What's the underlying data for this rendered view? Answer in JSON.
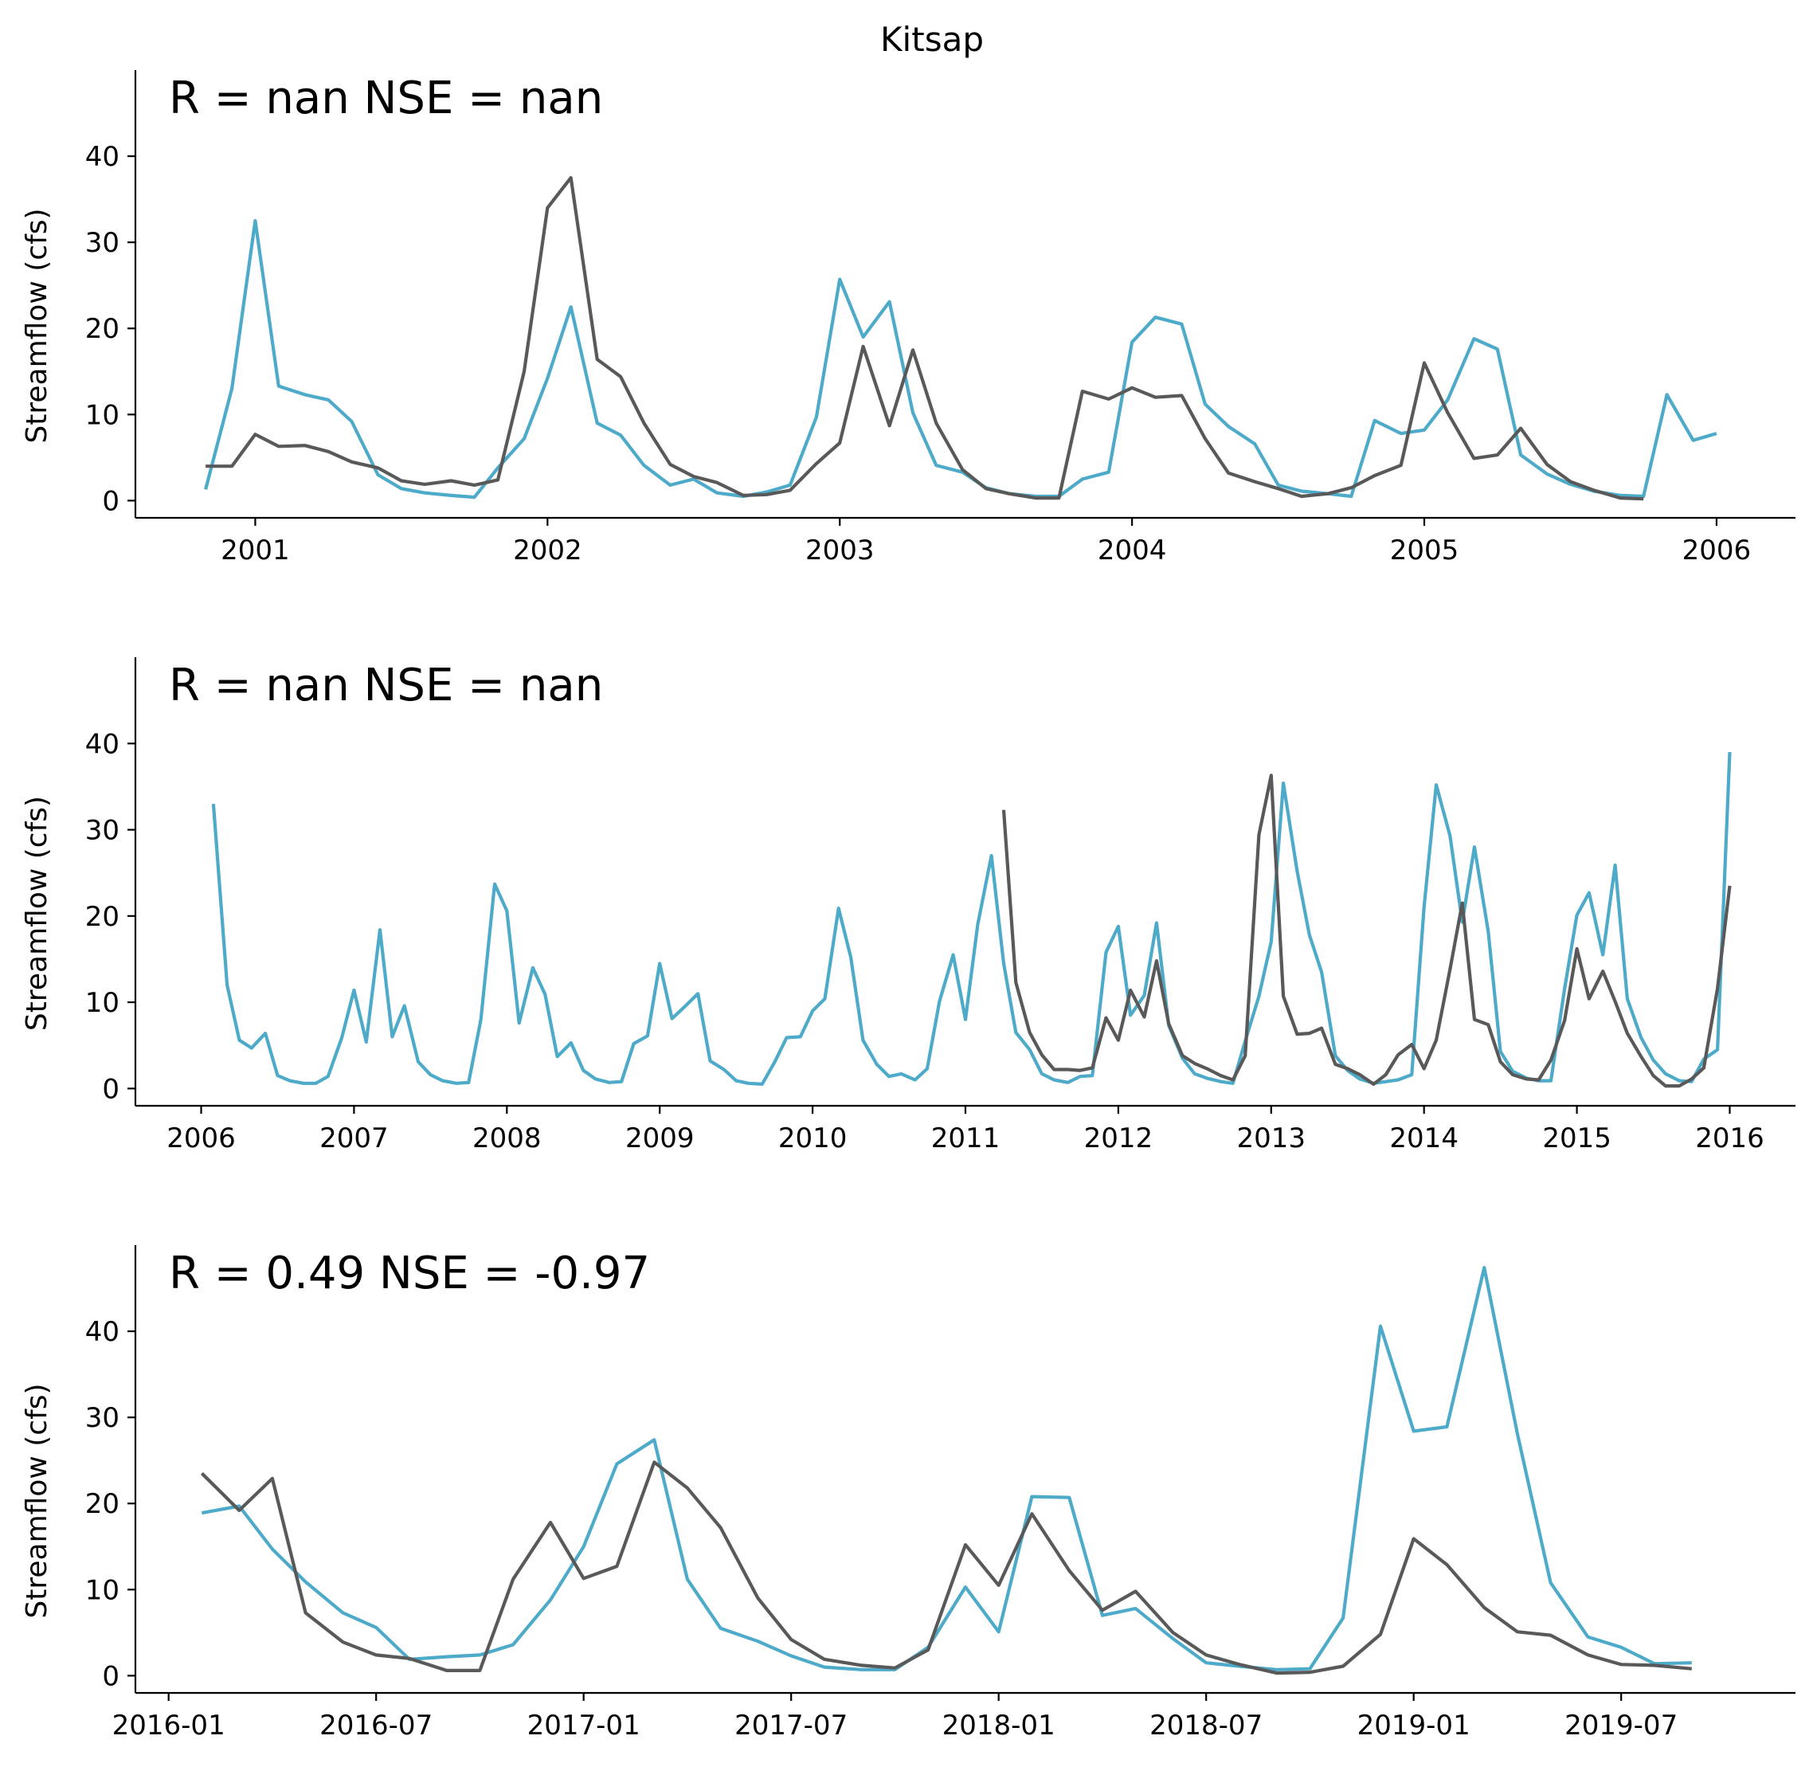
{
  "figure": {
    "title": "Kitsap"
  },
  "colors": {
    "observed": "#595959",
    "simulated": "#4daac9"
  },
  "chart_data": [
    {
      "type": "line",
      "stats_label": "R = nan  NSE = nan",
      "ylabel": "Streamflow (cfs)",
      "xlim": [
        2000.59,
        2006.27
      ],
      "ylim": [
        -2,
        50
      ],
      "xticks": [
        2001,
        2002,
        2003,
        2004,
        2005,
        2006
      ],
      "xtick_labels": [
        "2001",
        "2002",
        "2003",
        "2004",
        "2005",
        "2006"
      ],
      "yticks": [
        0,
        10,
        20,
        30,
        40
      ],
      "ytick_labels": [
        "0",
        "10",
        "20",
        "30",
        "40"
      ],
      "series": [
        {
          "color_key": "simulated",
          "x": [
            2000.83,
            2000.92,
            2001.0,
            2001.08,
            2001.17,
            2001.25,
            2001.33,
            2001.42,
            2001.5,
            2001.58,
            2001.67,
            2001.75,
            2001.83,
            2001.92,
            2002.0,
            2002.08,
            2002.17,
            2002.25,
            2002.33,
            2002.42,
            2002.5,
            2002.58,
            2002.67,
            2002.75,
            2002.83,
            2002.92,
            2003.0,
            2003.08,
            2003.17,
            2003.25,
            2003.33,
            2003.42,
            2003.5,
            2003.58,
            2003.67,
            2003.75,
            2003.83,
            2003.92,
            2004.0,
            2004.08,
            2004.17,
            2004.25,
            2004.33,
            2004.42,
            2004.5,
            2004.58,
            2004.67,
            2004.75,
            2004.83,
            2004.92,
            2005.0,
            2005.08,
            2005.17,
            2005.25,
            2005.33,
            2005.42,
            2005.5,
            2005.58,
            2005.67,
            2005.75,
            2005.83,
            2005.92,
            2006.0
          ],
          "y": [
            1.3,
            13.0,
            32.5,
            13.3,
            12.3,
            11.7,
            9.2,
            3.0,
            1.4,
            0.9,
            0.6,
            0.4,
            3.8,
            7.2,
            14.2,
            22.5,
            9.0,
            7.6,
            4.1,
            1.8,
            2.5,
            0.9,
            0.5,
            1.0,
            1.8,
            9.7,
            25.7,
            19.0,
            23.1,
            10.2,
            4.1,
            3.3,
            1.5,
            0.8,
            0.5,
            0.5,
            2.5,
            3.3,
            18.4,
            21.3,
            20.5,
            11.2,
            8.6,
            6.6,
            1.8,
            1.1,
            0.8,
            0.5,
            9.3,
            7.8,
            8.2,
            11.7,
            18.8,
            17.6,
            5.3,
            3.1,
            1.9,
            1.1,
            0.6,
            0.5,
            12.3,
            7.0,
            7.8
          ]
        },
        {
          "color_key": "observed",
          "x": [
            2000.83,
            2000.92,
            2001.0,
            2001.08,
            2001.17,
            2001.25,
            2001.33,
            2001.42,
            2001.5,
            2001.58,
            2001.67,
            2001.75,
            2001.83,
            2001.92,
            2002.0,
            2002.08,
            2002.17,
            2002.25,
            2002.33,
            2002.42,
            2002.5,
            2002.58,
            2002.67,
            2002.75,
            2002.83,
            2002.92,
            2003.0,
            2003.08,
            2003.17,
            2003.25,
            2003.33,
            2003.42,
            2003.5,
            2003.58,
            2003.67,
            2003.75,
            2003.83,
            2003.92,
            2004.0,
            2004.08,
            2004.17,
            2004.25,
            2004.33,
            2004.42,
            2004.5,
            2004.58,
            2004.67,
            2004.75,
            2004.83,
            2004.92,
            2005.0,
            2005.08,
            2005.17,
            2005.25,
            2005.33,
            2005.42,
            2005.5,
            2005.58,
            2005.67,
            2005.75
          ],
          "y": [
            4.0,
            4.0,
            7.7,
            6.3,
            6.4,
            5.7,
            4.5,
            3.8,
            2.3,
            1.9,
            2.3,
            1.8,
            2.4,
            15.0,
            34.0,
            37.5,
            16.4,
            14.4,
            9.0,
            4.2,
            2.8,
            2.1,
            0.6,
            0.7,
            1.2,
            4.3,
            6.7,
            17.9,
            8.7,
            17.5,
            9.0,
            3.6,
            1.4,
            0.8,
            0.3,
            0.3,
            12.7,
            11.8,
            13.1,
            12.0,
            12.2,
            7.2,
            3.2,
            2.2,
            1.4,
            0.5,
            0.8,
            1.5,
            2.9,
            4.1,
            16.0,
            10.2,
            4.9,
            5.3,
            8.4,
            4.2,
            2.2,
            1.2,
            0.3,
            0.2
          ]
        }
      ]
    },
    {
      "type": "line",
      "stats_label": "R = nan  NSE = nan",
      "ylabel": "Streamflow (cfs)",
      "xlim": [
        2005.57,
        2016.43
      ],
      "ylim": [
        -2,
        50
      ],
      "xticks": [
        2006,
        2007,
        2008,
        2009,
        2010,
        2011,
        2012,
        2013,
        2014,
        2015,
        2016
      ],
      "xtick_labels": [
        "2006",
        "2007",
        "2008",
        "2009",
        "2010",
        "2011",
        "2012",
        "2013",
        "2014",
        "2015",
        "2016"
      ],
      "yticks": [
        0,
        10,
        20,
        30,
        40
      ],
      "ytick_labels": [
        "0",
        "10",
        "20",
        "30",
        "40"
      ],
      "series": [
        {
          "color_key": "simulated",
          "x": [
            2006.08,
            2006.17,
            2006.25,
            2006.33,
            2006.42,
            2006.5,
            2006.58,
            2006.67,
            2006.75,
            2006.83,
            2006.92,
            2007.0,
            2007.08,
            2007.17,
            2007.25,
            2007.33,
            2007.42,
            2007.5,
            2007.58,
            2007.67,
            2007.75,
            2007.83,
            2007.92,
            2008.0,
            2008.08,
            2008.17,
            2008.25,
            2008.33,
            2008.42,
            2008.5,
            2008.58,
            2008.67,
            2008.75,
            2008.83,
            2008.92,
            2009.0,
            2009.08,
            2009.17,
            2009.25,
            2009.33,
            2009.42,
            2009.5,
            2009.58,
            2009.67,
            2009.75,
            2009.83,
            2009.92,
            2010.0,
            2010.08,
            2010.17,
            2010.25,
            2010.33,
            2010.42,
            2010.5,
            2010.58,
            2010.67,
            2010.75,
            2010.83,
            2010.92,
            2011.0,
            2011.08,
            2011.17,
            2011.25,
            2011.33,
            2011.42,
            2011.5,
            2011.58,
            2011.67,
            2011.75,
            2011.83,
            2011.92,
            2012.0,
            2012.08,
            2012.17,
            2012.25,
            2012.33,
            2012.42,
            2012.5,
            2012.58,
            2012.67,
            2012.75,
            2012.83,
            2012.92,
            2013.0,
            2013.08,
            2013.17,
            2013.25,
            2013.33,
            2013.42,
            2013.5,
            2013.58,
            2013.67,
            2013.75,
            2013.83,
            2013.92,
            2014.0,
            2014.08,
            2014.17,
            2014.25,
            2014.33,
            2014.42,
            2014.5,
            2014.58,
            2014.67,
            2014.75,
            2014.83,
            2014.92,
            2015.0,
            2015.08,
            2015.17,
            2015.25,
            2015.33,
            2015.42,
            2015.5,
            2015.58,
            2015.67,
            2015.75,
            2015.83,
            2015.92,
            2016.0
          ],
          "y": [
            33.0,
            12.0,
            5.6,
            4.7,
            6.4,
            1.5,
            0.9,
            0.6,
            0.6,
            1.4,
            5.9,
            11.4,
            5.4,
            18.4,
            6.0,
            9.6,
            3.1,
            1.6,
            0.9,
            0.6,
            0.7,
            8.0,
            23.7,
            20.6,
            7.6,
            14.0,
            10.9,
            3.7,
            5.3,
            2.1,
            1.1,
            0.7,
            0.8,
            5.2,
            6.1,
            14.5,
            8.1,
            9.6,
            11.0,
            3.2,
            2.2,
            0.9,
            0.6,
            0.5,
            3.0,
            5.9,
            6.0,
            9.0,
            10.4,
            20.9,
            15.2,
            5.6,
            2.8,
            1.4,
            1.7,
            1.0,
            2.3,
            10.1,
            15.5,
            8.0,
            19.0,
            27.0,
            14.5,
            6.5,
            4.5,
            1.7,
            1.0,
            0.7,
            1.4,
            1.5,
            15.8,
            18.8,
            8.5,
            10.8,
            19.2,
            7.3,
            3.5,
            1.7,
            1.2,
            0.8,
            0.6,
            5.5,
            10.7,
            17.0,
            35.4,
            25.2,
            17.8,
            13.5,
            3.8,
            2.1,
            1.1,
            0.6,
            0.8,
            1.0,
            1.6,
            21.0,
            35.2,
            29.3,
            19.3,
            28.0,
            18.2,
            4.3,
            2.0,
            1.2,
            0.9,
            0.9,
            11.6,
            20.1,
            22.7,
            15.5,
            25.9,
            10.4,
            5.9,
            3.3,
            1.7,
            0.9,
            0.8,
            3.4,
            4.5,
            39.0
          ]
        },
        {
          "color_key": "observed",
          "x": [
            2011.25,
            2011.33,
            2011.42,
            2011.5,
            2011.58,
            2011.67,
            2011.75,
            2011.83,
            2011.92,
            2012.0,
            2012.08,
            2012.17,
            2012.25,
            2012.33,
            2012.42,
            2012.5,
            2012.58,
            2012.67,
            2012.75,
            2012.83,
            2012.92,
            2013.0,
            2013.08,
            2013.17,
            2013.25,
            2013.33,
            2013.42,
            2013.5,
            2013.58,
            2013.67,
            2013.75,
            2013.83,
            2013.92,
            2014.0,
            2014.08,
            2014.17,
            2014.25,
            2014.33,
            2014.42,
            2014.5,
            2014.58,
            2014.67,
            2014.75,
            2014.83,
            2014.92,
            2015.0,
            2015.08,
            2015.17,
            2015.25,
            2015.33,
            2015.42,
            2015.5,
            2015.58,
            2015.67,
            2015.75,
            2015.83,
            2015.92,
            2016.0
          ],
          "y": [
            32.3,
            12.3,
            6.5,
            3.9,
            2.2,
            2.2,
            2.1,
            2.4,
            8.2,
            5.6,
            11.4,
            8.3,
            14.8,
            7.5,
            3.8,
            2.9,
            2.3,
            1.5,
            1.0,
            3.8,
            29.4,
            36.3,
            10.7,
            6.3,
            6.4,
            7.0,
            2.8,
            2.3,
            1.6,
            0.5,
            1.6,
            3.9,
            5.1,
            2.3,
            5.6,
            13.8,
            21.5,
            8.0,
            7.4,
            3.1,
            1.6,
            1.1,
            1.0,
            3.3,
            7.9,
            16.2,
            10.4,
            13.6,
            10.1,
            6.4,
            3.7,
            1.5,
            0.3,
            0.3,
            1.1,
            2.4,
            11.6,
            23.5
          ]
        }
      ]
    },
    {
      "type": "line",
      "stats_label": "R = 0.49  NSE = -0.97",
      "ylabel": "Streamflow (cfs)",
      "xlim": [
        2015.92,
        2019.92
      ],
      "ylim": [
        -2,
        50
      ],
      "xticks": [
        2016.0,
        2016.5,
        2017.0,
        2017.5,
        2018.0,
        2018.5,
        2019.0,
        2019.5
      ],
      "xtick_labels": [
        "2016-01",
        "2016-07",
        "2017-01",
        "2017-07",
        "2018-01",
        "2018-07",
        "2019-01",
        "2019-07"
      ],
      "yticks": [
        0,
        10,
        20,
        30,
        40
      ],
      "ytick_labels": [
        "0",
        "10",
        "20",
        "30",
        "40"
      ],
      "series": [
        {
          "color_key": "simulated",
          "x": [
            2016.08,
            2016.17,
            2016.25,
            2016.33,
            2016.42,
            2016.5,
            2016.58,
            2016.67,
            2016.75,
            2016.83,
            2016.92,
            2017.0,
            2017.08,
            2017.17,
            2017.25,
            2017.33,
            2017.42,
            2017.5,
            2017.58,
            2017.67,
            2017.75,
            2017.83,
            2017.92,
            2018.0,
            2018.08,
            2018.17,
            2018.25,
            2018.33,
            2018.42,
            2018.5,
            2018.58,
            2018.67,
            2018.75,
            2018.83,
            2018.92,
            2019.0,
            2019.08,
            2019.17,
            2019.25,
            2019.33,
            2019.42,
            2019.5,
            2019.58,
            2019.67
          ],
          "y": [
            18.9,
            19.7,
            14.7,
            10.9,
            7.3,
            5.6,
            1.9,
            2.2,
            2.4,
            3.6,
            8.8,
            15.0,
            24.6,
            27.4,
            11.2,
            5.5,
            4.0,
            2.3,
            1.0,
            0.7,
            0.7,
            3.3,
            10.3,
            5.1,
            20.8,
            20.7,
            7.0,
            7.8,
            4.3,
            1.5,
            1.1,
            0.7,
            0.8,
            6.7,
            40.6,
            28.4,
            28.9,
            47.4,
            28.1,
            10.8,
            4.5,
            3.3,
            1.4,
            1.5
          ]
        },
        {
          "color_key": "observed",
          "x": [
            2016.08,
            2016.17,
            2016.25,
            2016.33,
            2016.42,
            2016.5,
            2016.58,
            2016.67,
            2016.75,
            2016.83,
            2016.92,
            2017.0,
            2017.08,
            2017.17,
            2017.25,
            2017.33,
            2017.42,
            2017.5,
            2017.58,
            2017.67,
            2017.75,
            2017.83,
            2017.92,
            2018.0,
            2018.08,
            2018.17,
            2018.25,
            2018.33,
            2018.42,
            2018.5,
            2018.58,
            2018.67,
            2018.75,
            2018.83,
            2018.92,
            2019.0,
            2019.08,
            2019.17,
            2019.25,
            2019.33,
            2019.42,
            2019.5,
            2019.58,
            2019.67
          ],
          "y": [
            23.5,
            19.2,
            22.9,
            7.3,
            3.9,
            2.4,
            2.0,
            0.6,
            0.6,
            11.2,
            17.8,
            11.3,
            12.7,
            24.8,
            21.8,
            17.2,
            9.0,
            4.2,
            1.9,
            1.2,
            0.9,
            3.0,
            15.2,
            10.5,
            18.8,
            12.2,
            7.6,
            9.8,
            5.0,
            2.4,
            1.3,
            0.3,
            0.4,
            1.1,
            4.8,
            15.9,
            12.9,
            7.9,
            5.1,
            4.7,
            2.4,
            1.3,
            1.2,
            0.8
          ]
        }
      ]
    }
  ]
}
